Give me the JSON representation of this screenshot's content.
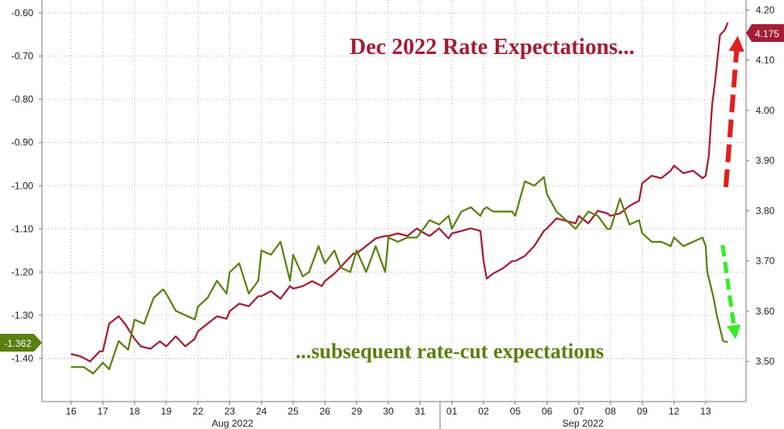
{
  "chart_data": {
    "type": "line",
    "title": "",
    "xlabel": "",
    "ylabel": "",
    "grid": true,
    "left_axis": {
      "ylim": [
        -1.5,
        -0.57
      ],
      "ticks": [
        -0.6,
        -0.7,
        -0.8,
        -0.9,
        -1.0,
        -1.1,
        -1.2,
        -1.3,
        -1.4
      ],
      "tick_labels": [
        "-0.60",
        "-0.70",
        "-0.80",
        "-0.90",
        "-1.00",
        "-1.10",
        "-1.20",
        "-1.30",
        "-1.40"
      ]
    },
    "right_axis": {
      "ylim": [
        3.42,
        4.22
      ],
      "ticks": [
        4.2,
        4.1,
        4.0,
        3.9,
        3.8,
        3.7,
        3.6,
        3.5
      ],
      "tick_labels": [
        "4.20",
        "4.10",
        "4.00",
        "3.90",
        "3.80",
        "3.70",
        "3.60",
        "3.50"
      ]
    },
    "x_axis": {
      "day_labels": [
        "16",
        "17",
        "18",
        "19",
        "22",
        "23",
        "24",
        "25",
        "26",
        "29",
        "30",
        "31",
        "01",
        "02",
        "05",
        "06",
        "07",
        "08",
        "09",
        "12",
        "13"
      ],
      "month_labels": [
        "Aug 2022",
        "Sep 2022"
      ]
    },
    "series": [
      {
        "axis": "right",
        "color": "#a31d36",
        "last_value_label": "4.175",
        "x": [
          0,
          0.3,
          0.6,
          0.9,
          1,
          1.2,
          1.5,
          1.7,
          2,
          2.2,
          2.5,
          2.8,
          3,
          3.3,
          3.6,
          3.9,
          4,
          4.3,
          4.6,
          4.9,
          5,
          5.3,
          5.6,
          5.9,
          6,
          6.3,
          6.6,
          6.9,
          7,
          7.3,
          7.6,
          7.9,
          8,
          8.3,
          8.6,
          8.9,
          9,
          9.3,
          9.6,
          9.9,
          10,
          10.3,
          10.6,
          10.9,
          11,
          11.3,
          11.6,
          11.9,
          12,
          12.3,
          12.6,
          12.9,
          13,
          13.1,
          13.3,
          13.6,
          13.9,
          14,
          14.3,
          14.6,
          14.9,
          15,
          15.3,
          15.6,
          15.9,
          16,
          16.3,
          16.6,
          16.9,
          17,
          17.3,
          17.6,
          17.9,
          18,
          18.3,
          18.6,
          18.9,
          19,
          19.3,
          19.6,
          19.9,
          20,
          20.1,
          20.2,
          20.3,
          20.45,
          20.6,
          20.7
        ],
        "values": [
          3.515,
          3.51,
          3.5,
          3.52,
          3.52,
          3.575,
          3.59,
          3.575,
          3.545,
          3.53,
          3.525,
          3.54,
          3.53,
          3.55,
          3.53,
          3.545,
          3.56,
          3.575,
          3.59,
          3.585,
          3.6,
          3.615,
          3.61,
          3.63,
          3.63,
          3.64,
          3.625,
          3.65,
          3.645,
          3.65,
          3.66,
          3.65,
          3.66,
          3.675,
          3.695,
          3.715,
          3.715,
          3.73,
          3.745,
          3.75,
          3.75,
          3.755,
          3.75,
          3.765,
          3.76,
          3.75,
          3.765,
          3.745,
          3.755,
          3.76,
          3.765,
          3.76,
          3.7,
          3.665,
          3.675,
          3.685,
          3.7,
          3.7,
          3.71,
          3.73,
          3.76,
          3.765,
          3.785,
          3.78,
          3.775,
          3.79,
          3.775,
          3.8,
          3.795,
          3.79,
          3.795,
          3.81,
          3.82,
          3.855,
          3.87,
          3.865,
          3.88,
          3.89,
          3.875,
          3.88,
          3.865,
          3.87,
          3.91,
          4.01,
          4.06,
          4.15,
          4.16,
          4.175
        ]
      },
      {
        "axis": "left",
        "color": "#5b7f10",
        "last_value_label": "-1.362",
        "x": [
          0,
          0.4,
          0.7,
          1,
          1.2,
          1.5,
          1.8,
          2,
          2.3,
          2.6,
          2.9,
          3,
          3.3,
          3.6,
          3.9,
          4,
          4.3,
          4.6,
          4.9,
          5,
          5.3,
          5.6,
          5.9,
          6,
          6.3,
          6.6,
          6.9,
          7,
          7.3,
          7.5,
          7.8,
          8,
          8.3,
          8.5,
          8.8,
          9,
          9.3,
          9.6,
          9.9,
          10,
          10.3,
          10.6,
          10.9,
          11,
          11.3,
          11.6,
          11.9,
          12,
          12.3,
          12.6,
          12.9,
          13,
          13.1,
          13.3,
          13.6,
          13.9,
          14,
          14.3,
          14.6,
          14.9,
          15,
          15.3,
          15.6,
          15.9,
          16,
          16.3,
          16.6,
          16.9,
          17,
          17.3,
          17.6,
          17.9,
          18,
          18.3,
          18.6,
          18.9,
          19,
          19.3,
          19.6,
          19.9,
          20,
          20.05,
          20.15,
          20.25,
          20.35,
          20.45,
          20.55,
          20.7
        ],
        "values": [
          -1.42,
          -1.42,
          -1.435,
          -1.41,
          -1.425,
          -1.36,
          -1.38,
          -1.31,
          -1.32,
          -1.26,
          -1.24,
          -1.25,
          -1.29,
          -1.3,
          -1.31,
          -1.28,
          -1.26,
          -1.22,
          -1.25,
          -1.2,
          -1.18,
          -1.25,
          -1.22,
          -1.15,
          -1.16,
          -1.13,
          -1.22,
          -1.16,
          -1.21,
          -1.2,
          -1.14,
          -1.18,
          -1.15,
          -1.19,
          -1.2,
          -1.15,
          -1.2,
          -1.14,
          -1.2,
          -1.12,
          -1.13,
          -1.12,
          -1.12,
          -1.11,
          -1.08,
          -1.09,
          -1.07,
          -1.1,
          -1.06,
          -1.05,
          -1.07,
          -1.055,
          -1.05,
          -1.06,
          -1.06,
          -1.06,
          -1.07,
          -0.99,
          -1.0,
          -0.98,
          -1.02,
          -1.06,
          -1.08,
          -1.1,
          -1.09,
          -1.06,
          -1.07,
          -1.1,
          -1.1,
          -1.03,
          -1.09,
          -1.08,
          -1.11,
          -1.13,
          -1.13,
          -1.14,
          -1.12,
          -1.14,
          -1.13,
          -1.12,
          -1.14,
          -1.2,
          -1.23,
          -1.26,
          -1.3,
          -1.33,
          -1.36,
          -1.362
        ]
      }
    ],
    "annotations": [
      {
        "text": "Dec 2022 Rate Expectations...",
        "color": "#a31d36"
      },
      {
        "text": "...subsequent rate-cut expectations",
        "color": "#5b7f10"
      }
    ]
  }
}
